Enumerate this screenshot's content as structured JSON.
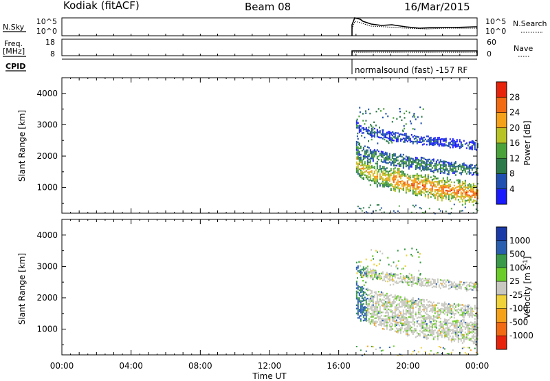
{
  "header": {
    "station": "Kodiak (fitACF)",
    "beam": "Beam 08",
    "date": "16/Mar/2015"
  },
  "status_panels": {
    "nsky_label": "N.Sky",
    "nsky_ticks": [
      "10^5",
      "10^0"
    ],
    "nsearch_label": "N.Search",
    "nsearch_ticks": [
      "10^5",
      "10^0"
    ],
    "freq_label": [
      "Freq.",
      "[MHz]"
    ],
    "freq_ticks": [
      "18",
      "8"
    ],
    "nave_label": "Nave",
    "nave_ticks": [
      "60",
      "0"
    ],
    "cpid_label": "CPID",
    "cpid_text": "normalsound (fast) -157 RF"
  },
  "colors": {
    "power_scale": [
      "#1a1aff",
      "#1f4fb0",
      "#2c7a4a",
      "#4aa23a",
      "#b8c426",
      "#f5a11a",
      "#f26a12",
      "#e8230c"
    ],
    "velocity_scale": [
      "#e8230c",
      "#f26a12",
      "#f5a11a",
      "#f0d23a",
      "#c8c8c0",
      "#6ccd2a",
      "#3b9a4a",
      "#2a5fb0",
      "#1a3aa8"
    ]
  },
  "chart_data": [
    {
      "type": "heatmap",
      "title": "Power",
      "xlabel": "",
      "ylabel": "Slant Range [km]",
      "xlim": [
        0,
        24
      ],
      "ylim": [
        180,
        4500
      ],
      "y_ticks": [
        "4000",
        "3000",
        "2000",
        "1000"
      ],
      "colorbar": {
        "label": "Power [dB]",
        "range": [
          0,
          32
        ],
        "tick_values": [
          4,
          8,
          12,
          16,
          20,
          24,
          28
        ],
        "tick_labels": [
          "4",
          "8",
          "12",
          "16",
          "20",
          "24",
          "28"
        ]
      },
      "grid": false,
      "data_start_ut": 17.0,
      "data_end_ut": 24.0,
      "bands": [
        {
          "range_start_km": 1850,
          "range_end_km": 800,
          "width_km": 650,
          "value_db": 22
        },
        {
          "range_start_km": 2350,
          "range_end_km": 1550,
          "width_km": 350,
          "value_db": 12
        },
        {
          "range_start_km": 3000,
          "range_end_km": 2350,
          "width_km": 250,
          "value_db": 6
        }
      ]
    },
    {
      "type": "heatmap",
      "title": "Velocity",
      "xlabel": "Time UT",
      "ylabel": "Slant Range [km]",
      "xlim": [
        0,
        24
      ],
      "ylim": [
        180,
        4500
      ],
      "x_ticks": [
        "00:00",
        "04:00",
        "08:00",
        "12:00",
        "16:00",
        "20:00",
        "00:00"
      ],
      "y_ticks": [
        "4000",
        "3000",
        "2000",
        "1000"
      ],
      "colorbar": {
        "label": "Velocity [m s^-1]",
        "tick_labels": [
          "1000",
          "500",
          "100",
          "25",
          "-25",
          "-100",
          "-500",
          "-1000"
        ]
      },
      "grid": false,
      "data_start_ut": 17.0,
      "data_end_ut": 24.0,
      "bands": [
        {
          "range_start_km": 1850,
          "range_end_km": 900,
          "width_km": 700,
          "value_ms": 0
        },
        {
          "range_start_km": 2350,
          "range_end_km": 1550,
          "width_km": 350,
          "value_ms": 0
        },
        {
          "range_start_km": 3000,
          "range_end_km": 2350,
          "width_km": 250,
          "value_ms": 0
        }
      ]
    }
  ]
}
